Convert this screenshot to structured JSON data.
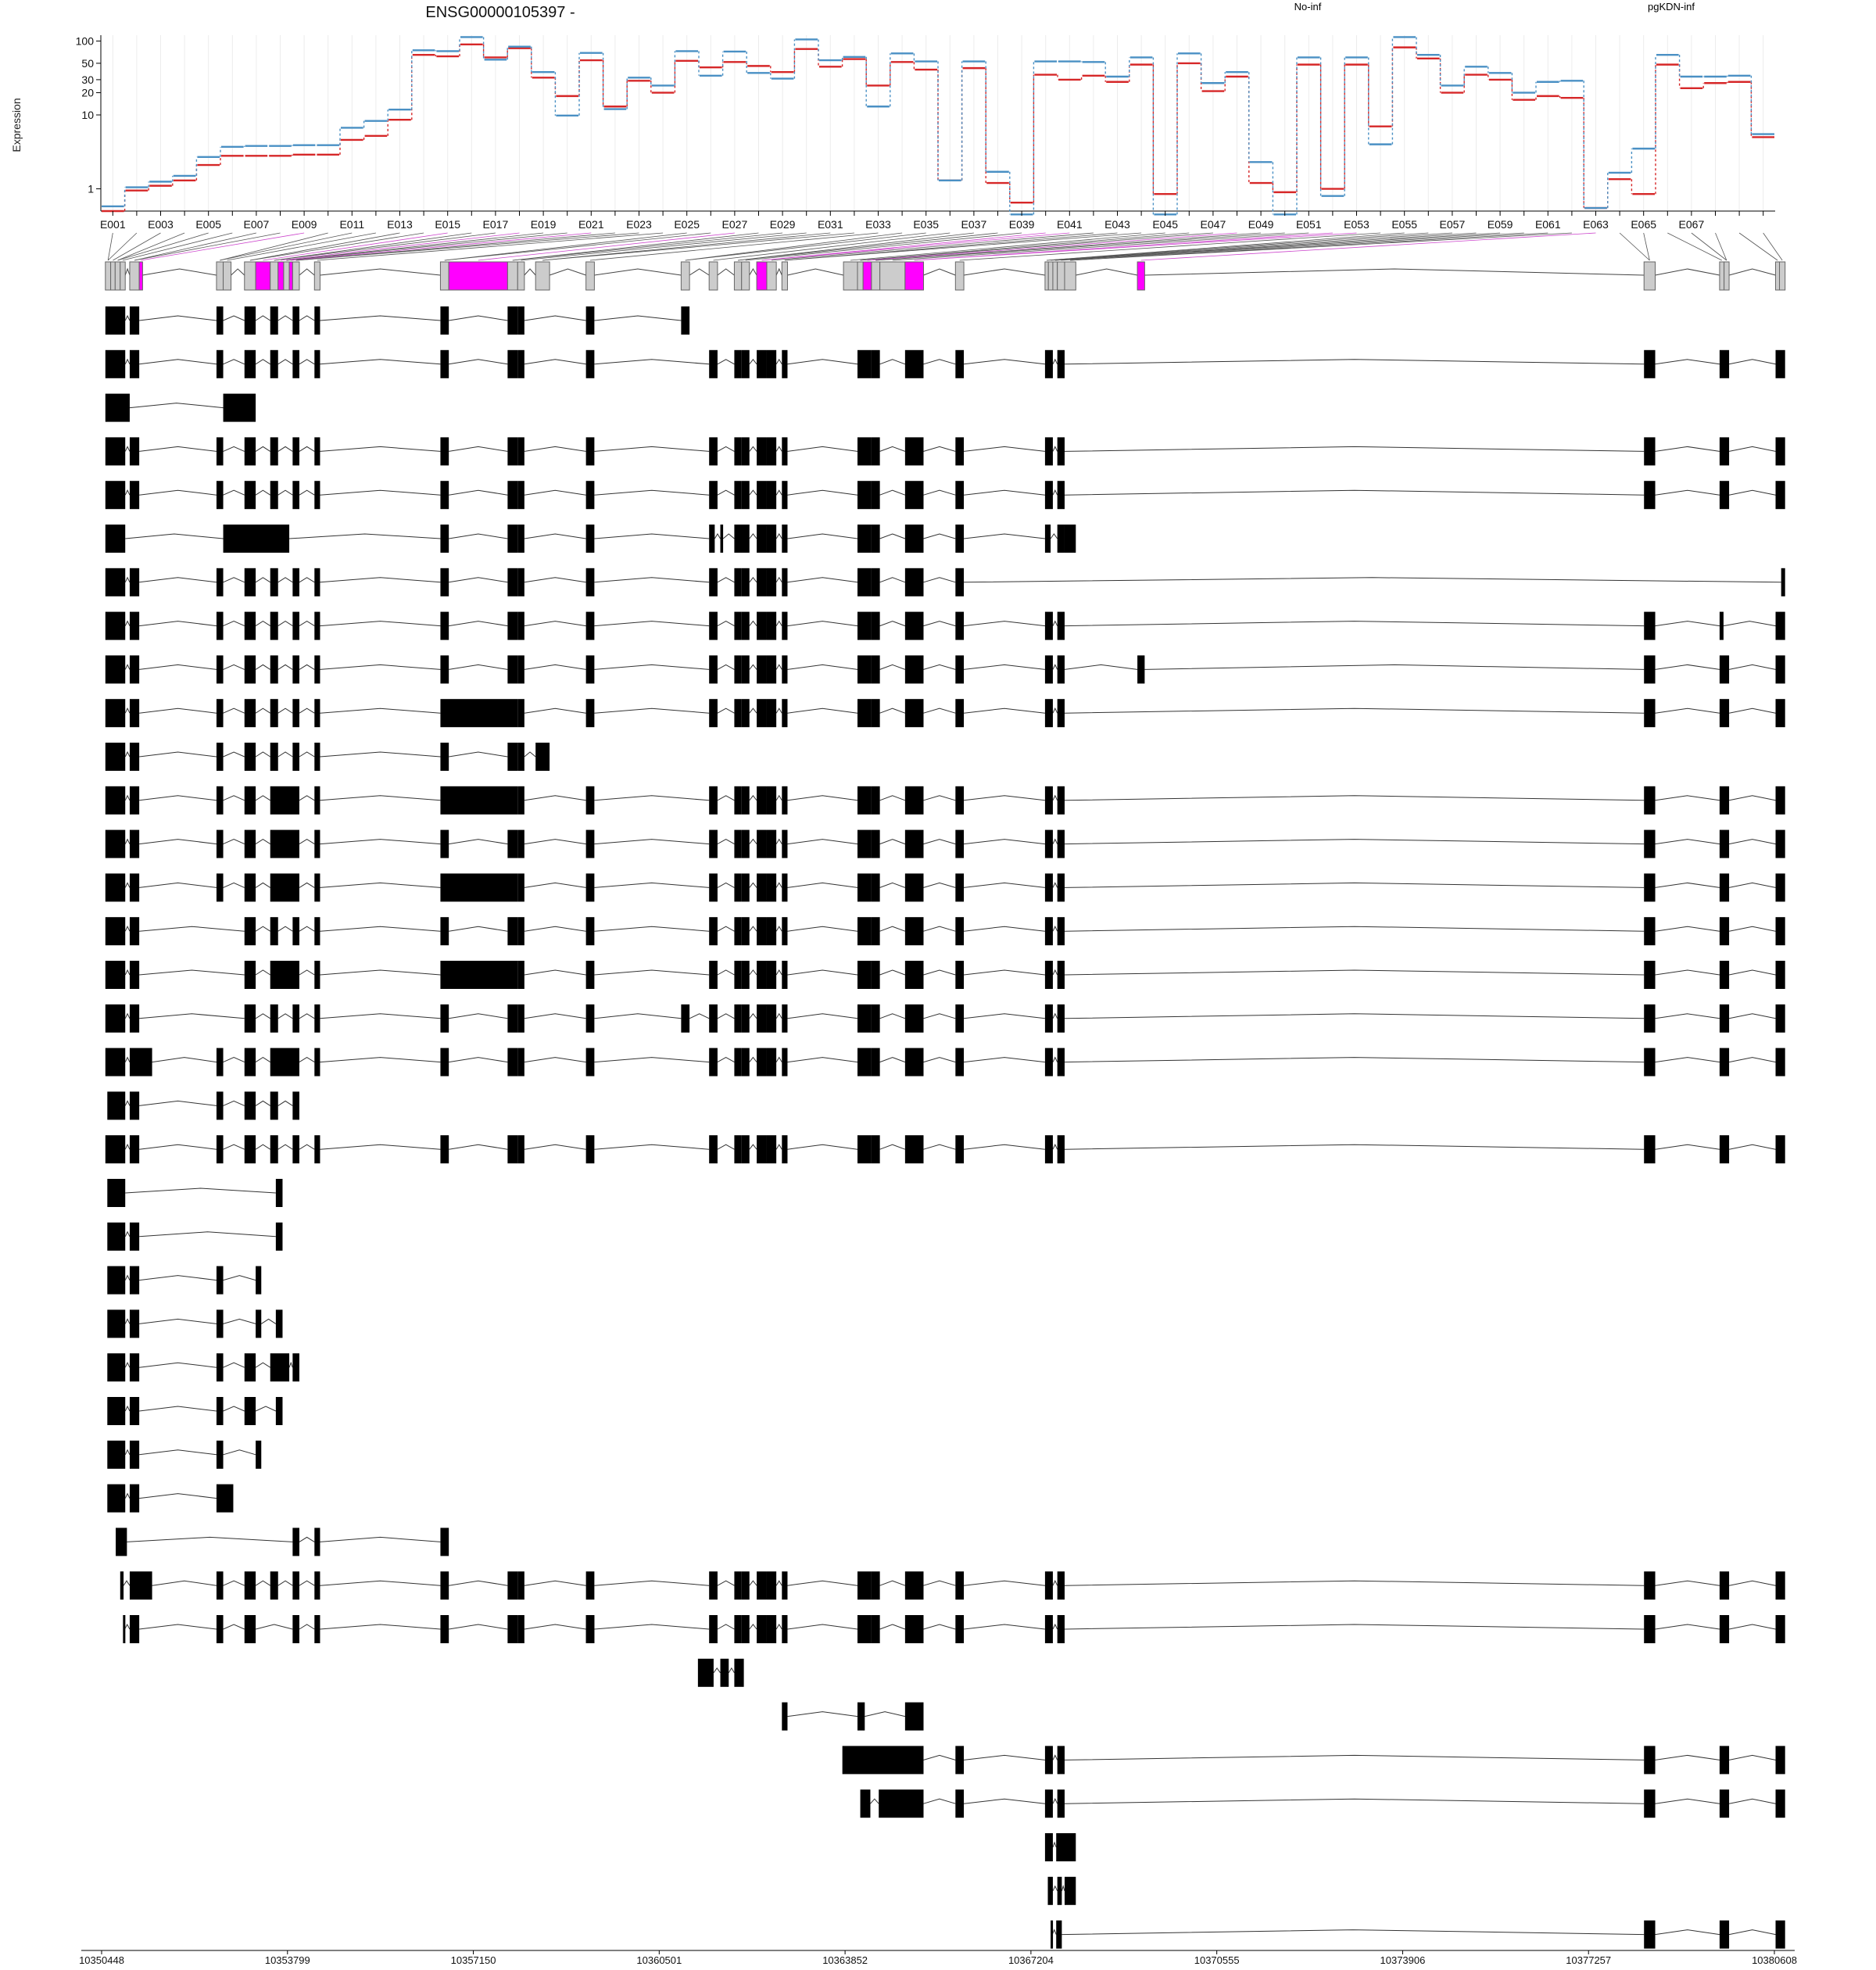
{
  "chart_data": {
    "type": "line",
    "title": "ENSG00000105397 -",
    "ylabel": "Expression",
    "yscale": "log",
    "ylim": [
      0.5,
      120
    ],
    "y_ticks": [
      1,
      10,
      20,
      30,
      50,
      100
    ],
    "y_tick_labels": [
      "1",
      "10",
      "20",
      "30",
      "50",
      "100"
    ],
    "grid": true,
    "legend_position": "top-right",
    "colors": {
      "No-inf": "#d62728",
      "pgKDN-inf": "#4a90c4",
      "highlight": "#ff00ff",
      "exon_grey": "#cccccc"
    },
    "x_tick_labels": [
      "E001",
      "E003",
      "E005",
      "E007",
      "E009",
      "E011",
      "E013",
      "E015",
      "E017",
      "E019",
      "E021",
      "E023",
      "E025",
      "E027",
      "E029",
      "E031",
      "E033",
      "E035",
      "E037",
      "E039",
      "E041",
      "E043",
      "E045",
      "E047",
      "E049",
      "E051",
      "E053",
      "E055",
      "E057",
      "E059",
      "E061",
      "E063",
      "E065",
      "E067"
    ],
    "series": [
      {
        "name": "No-inf",
        "color": "#d62728",
        "values": [
          0.5,
          0.95,
          1.1,
          1.3,
          2.1,
          2.8,
          2.8,
          2.8,
          2.9,
          2.9,
          4.6,
          5.2,
          8.6,
          65,
          62,
          90,
          60,
          80,
          32,
          18,
          55,
          13,
          29,
          20,
          54,
          44,
          52,
          46,
          38,
          78,
          45,
          57,
          25,
          52,
          41,
          1.3,
          43,
          1.2,
          0.65,
          35,
          30,
          34,
          28,
          48,
          0.85,
          50,
          21,
          33,
          1.2,
          0.9,
          48,
          1.0,
          48,
          7,
          82,
          58,
          20,
          35,
          30,
          16,
          18,
          17,
          0.55,
          1.35,
          0.85,
          48,
          23,
          27,
          28,
          5
        ]
      },
      {
        "name": "pgKDN-inf",
        "color": "#4a90c4",
        "values": [
          0.58,
          1.05,
          1.25,
          1.5,
          2.7,
          3.7,
          3.8,
          3.8,
          3.9,
          3.9,
          6.7,
          8.3,
          11.8,
          75,
          73,
          113,
          56,
          84,
          38,
          9.8,
          69,
          12,
          32,
          25,
          73,
          34,
          72,
          37,
          31,
          105,
          55,
          61,
          13,
          68,
          53,
          1.3,
          53,
          1.7,
          0.45,
          53,
          53,
          52,
          33,
          60,
          0.45,
          68,
          27,
          38,
          2.3,
          0.45,
          60,
          0.8,
          60,
          4,
          113,
          65,
          25,
          45,
          37,
          20,
          28,
          29,
          0.55,
          1.65,
          3.5,
          65,
          33,
          33,
          34,
          5.5
        ]
      }
    ],
    "genomic_ticks": [
      "10350448",
      "10353799",
      "10357150",
      "10360501",
      "10363852",
      "10367204",
      "10370555",
      "10373906",
      "10377257",
      "10380608"
    ]
  }
}
